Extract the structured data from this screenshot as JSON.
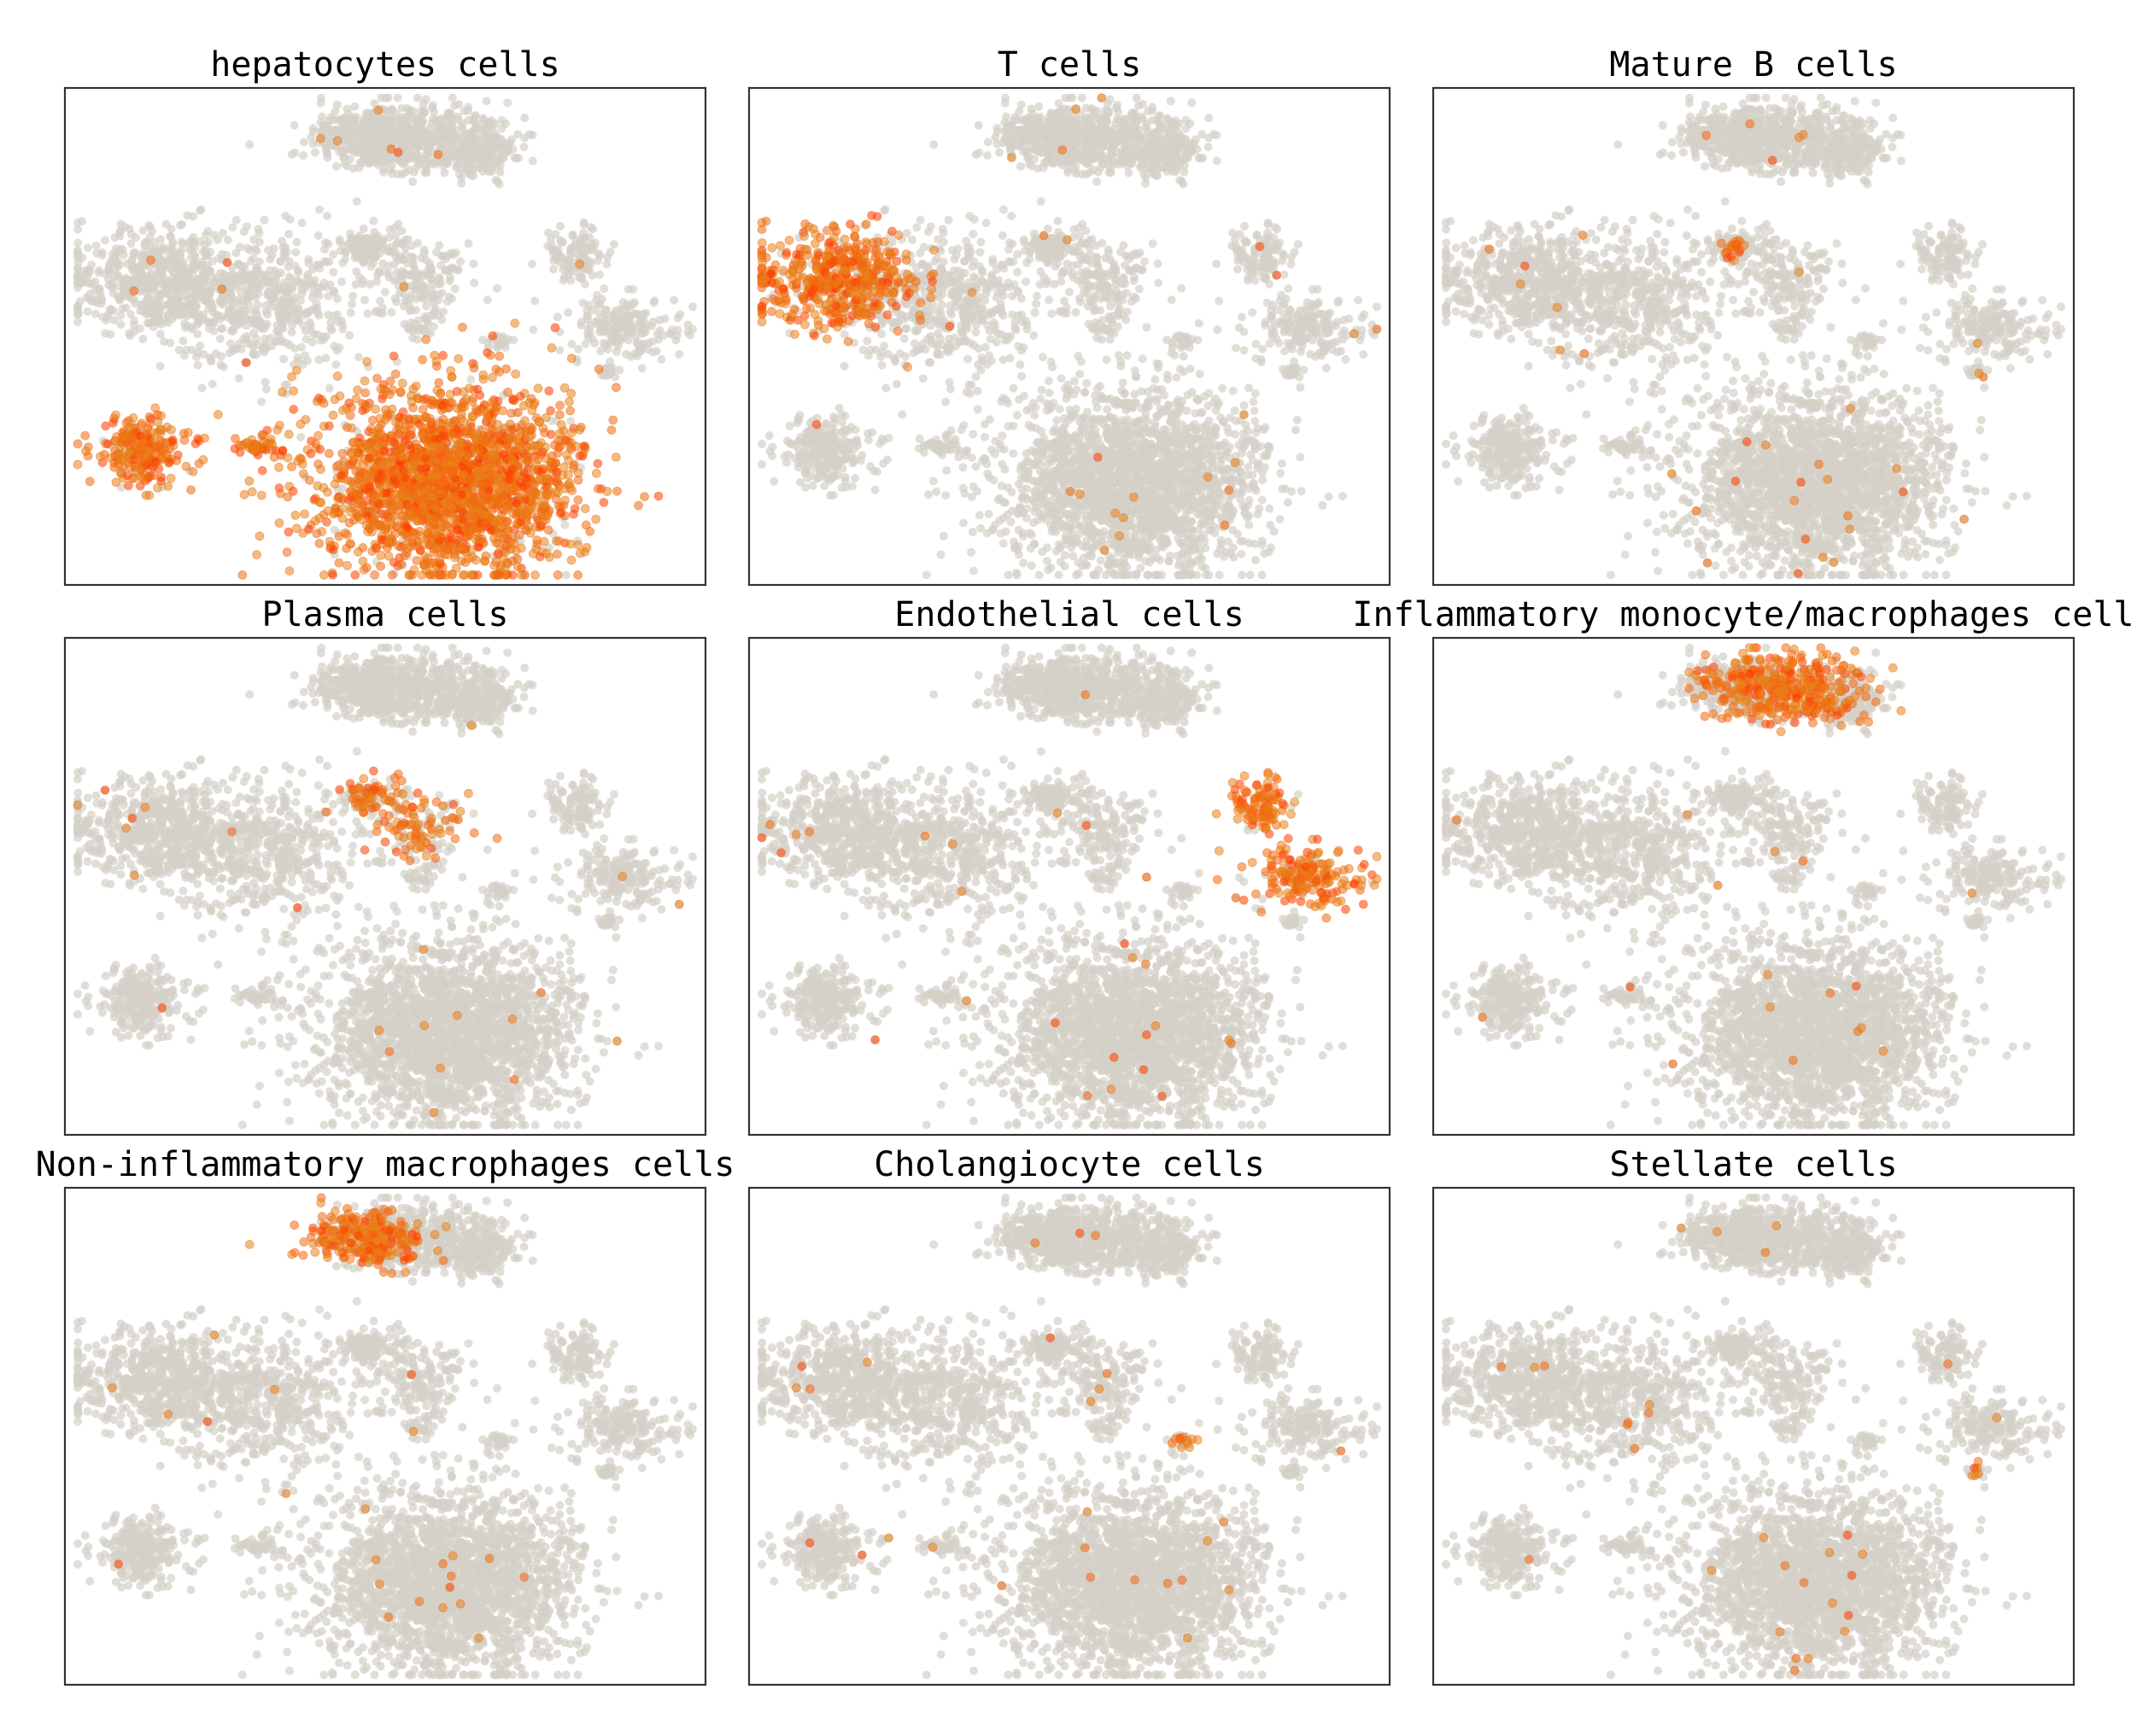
{
  "figure": {
    "background_dot_color": "#d4d0c8",
    "highlight_colors": [
      "#e8841a",
      "#f26a10",
      "#ff3a00"
    ]
  },
  "chart_data": [
    {
      "type": "scatter",
      "title": "hepatocytes cells",
      "highlight": [
        "isle",
        "liver",
        "liver_bridge"
      ],
      "density": "high",
      "axes": "hidden"
    },
    {
      "type": "scatter",
      "title": "T cells",
      "highlight": [
        "lymphoid"
      ],
      "density": "high",
      "axes": "hidden"
    },
    {
      "type": "scatter",
      "title": "Mature B cells",
      "highlight": [
        "bcell_tight",
        "lymphoid_sparse"
      ],
      "density": "medium",
      "axes": "hidden"
    },
    {
      "type": "scatter",
      "title": "Plasma cells",
      "highlight": [
        "mid_small",
        "mid_mid"
      ],
      "density": "medium",
      "axes": "hidden"
    },
    {
      "type": "scatter",
      "title": "Endothelial cells",
      "highlight": [
        "right_top",
        "right_mid"
      ],
      "density": "high",
      "axes": "hidden"
    },
    {
      "type": "scatter",
      "title": "Inflammatory monocyte/macrophages cells",
      "highlight": [
        "top_cluster"
      ],
      "density": "high",
      "axes": "hidden"
    },
    {
      "type": "scatter",
      "title": "Non-inflammatory macrophages cells",
      "highlight": [
        "top_left"
      ],
      "density": "high",
      "axes": "hidden"
    },
    {
      "type": "scatter",
      "title": "Cholangiocyte cells",
      "highlight": [
        "chol_spot"
      ],
      "density": "low",
      "axes": "hidden"
    },
    {
      "type": "scatter",
      "title": "Stellate cells",
      "highlight": [
        "stellate_spot"
      ],
      "density": "low",
      "axes": "hidden"
    }
  ]
}
